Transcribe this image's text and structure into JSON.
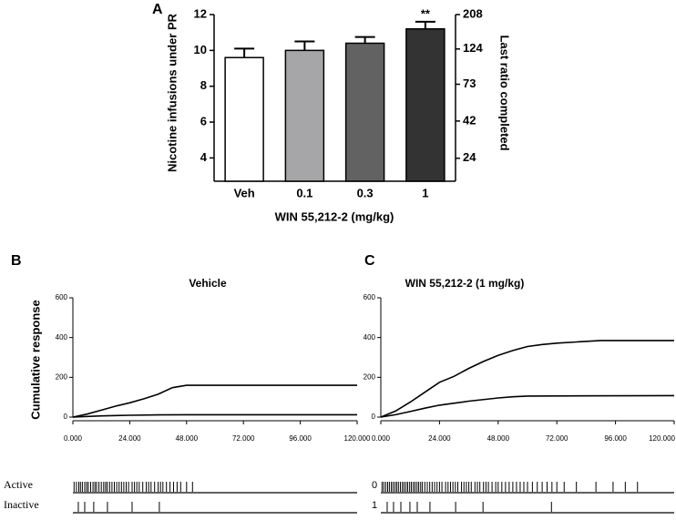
{
  "chart_data": [
    {
      "type": "bar",
      "panel_label": "A",
      "categories": [
        "Veh",
        "0.1",
        "0.3",
        "1"
      ],
      "values": [
        9.6,
        10.0,
        10.4,
        11.2
      ],
      "errors": [
        0.5,
        0.5,
        0.35,
        0.4
      ],
      "colors": [
        "#ffffff",
        "#a6a6a8",
        "#626262",
        "#333333"
      ],
      "annotations": [
        {
          "category": "1",
          "label": "**"
        }
      ],
      "xlabel": "WIN 55,212-2 (mg/kg)",
      "ylabel": "Nicotine infusions under PR",
      "y2label": "Last ratio completed",
      "ylim": [
        2.7,
        12
      ],
      "yticks": [
        4,
        6,
        8,
        10,
        12
      ],
      "y2lim": [
        17,
        208
      ],
      "y2scale": "log",
      "y2ticks": [
        24,
        42,
        73,
        124,
        208
      ]
    },
    {
      "type": "line",
      "panel_label": "B",
      "title": "Vehicle",
      "ylabel": "Cumulative response",
      "xlim": [
        0,
        120
      ],
      "xticks": [
        {
          "value": 0,
          "label": "0.000"
        },
        {
          "value": 24,
          "label": "24.000"
        },
        {
          "value": 48,
          "label": "48.000"
        },
        {
          "value": 72,
          "label": "72.000"
        },
        {
          "value": 96,
          "label": "96.000"
        },
        {
          "value": 120,
          "label": "120.000"
        }
      ],
      "ylim": [
        0,
        600
      ],
      "yticks": [
        0,
        200,
        400,
        600
      ],
      "series": [
        {
          "color": "#000000",
          "x": [
            0,
            6,
            12,
            18,
            24,
            30,
            36,
            42,
            48,
            120
          ],
          "values": [
            0,
            15,
            35,
            55,
            72,
            92,
            115,
            148,
            160,
            160
          ]
        },
        {
          "color": "#000000",
          "x": [
            0,
            6,
            12,
            24,
            36,
            48,
            120
          ],
          "values": [
            0,
            3,
            6,
            9,
            11,
            12,
            12
          ]
        }
      ],
      "events": [
        {
          "name": "Active",
          "times": [
            0.5,
            1.5,
            2.5,
            3.2,
            4,
            5,
            5.8,
            6.5,
            7.5,
            8.5,
            9.3,
            10,
            11,
            12,
            13,
            13.8,
            14.5,
            15.5,
            16.5,
            17.5,
            18.5,
            19.5,
            20.5,
            21.5,
            22.5,
            23.5,
            25,
            26,
            27,
            28,
            29.5,
            31,
            32,
            33,
            34.5,
            36,
            37,
            38,
            39.5,
            41,
            42.5,
            44,
            45.5,
            48,
            50.5
          ]
        },
        {
          "name": "Inactive",
          "times": [
            2.3,
            5,
            8.8,
            14.6,
            25,
            36.5
          ]
        }
      ]
    },
    {
      "type": "line",
      "panel_label": "C",
      "title": "WIN 55,212-2 (1 mg/kg)",
      "xlim": [
        0,
        120
      ],
      "xticks": [
        {
          "value": 0,
          "label": "0.000"
        },
        {
          "value": 24,
          "label": "24.000"
        },
        {
          "value": 48,
          "label": "48.000"
        },
        {
          "value": 72,
          "label": "72.000"
        },
        {
          "value": 96,
          "label": "96.000"
        },
        {
          "value": 120,
          "label": "120.000"
        }
      ],
      "ylim": [
        0,
        600
      ],
      "yticks": [
        0,
        200,
        400,
        600
      ],
      "series": [
        {
          "color": "#000000",
          "x": [
            0,
            6,
            12,
            18,
            24,
            30,
            36,
            42,
            48,
            54,
            60,
            66,
            72,
            80,
            90,
            120
          ],
          "values": [
            0,
            30,
            75,
            125,
            175,
            205,
            245,
            280,
            310,
            335,
            355,
            365,
            372,
            378,
            385,
            385
          ]
        },
        {
          "color": "#000000",
          "x": [
            0,
            6,
            12,
            18,
            24,
            36,
            48,
            54,
            60,
            120
          ],
          "values": [
            0,
            12,
            28,
            45,
            60,
            80,
            96,
            102,
            106,
            108
          ]
        }
      ],
      "events": [
        {
          "name": "0",
          "times": [
            0.5,
            1.2,
            2,
            2.8,
            3.5,
            4.3,
            5,
            5.8,
            6.5,
            7.2,
            8,
            8.8,
            9.5,
            10.3,
            11,
            11.8,
            12.5,
            13.3,
            14,
            14.8,
            15.5,
            16.3,
            17,
            18,
            19,
            20,
            21,
            22,
            23,
            24,
            25,
            26.5,
            27.5,
            28.5,
            29.5,
            30.5,
            31.5,
            33,
            34,
            35,
            36,
            37,
            38.5,
            39.5,
            40.5,
            42,
            43,
            44,
            45.5,
            47,
            48,
            49.5,
            51,
            52.5,
            54,
            55.5,
            57,
            58.5,
            60,
            62,
            64,
            66,
            68,
            70,
            72,
            75,
            80,
            88,
            95,
            100,
            105
          ]
        },
        {
          "name": "1",
          "times": [
            2.6,
            5.2,
            8.2,
            11.9,
            14.9,
            20.1,
            30.6,
            41.8,
            69.8
          ]
        }
      ]
    }
  ]
}
